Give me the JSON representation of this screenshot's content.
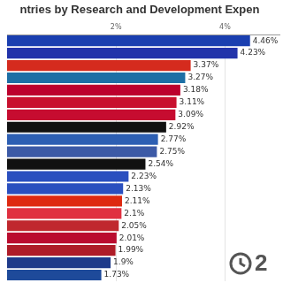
{
  "chart_data": {
    "type": "bar",
    "orientation": "horizontal",
    "title": "ntries by Research and Development Expen",
    "categories": [
      null,
      null,
      null,
      null,
      null,
      null,
      null,
      null,
      null,
      null,
      null,
      null,
      null,
      null,
      null,
      null,
      null,
      null,
      null,
      null
    ],
    "values": [
      4.46,
      4.23,
      3.37,
      3.27,
      3.18,
      3.11,
      3.09,
      2.92,
      2.77,
      2.75,
      2.54,
      2.23,
      2.13,
      2.11,
      2.1,
      2.05,
      2.01,
      1.99,
      1.9,
      1.73
    ],
    "value_labels": [
      "4.46%",
      "4.23%",
      "3.37%",
      "3.27%",
      "3.18%",
      "3.11%",
      "3.09%",
      "2.92%",
      "2.77%",
      "2.75%",
      "2.54%",
      "2.23%",
      "2.13%",
      "2.11%",
      "2.1%",
      "2.05%",
      "2.01%",
      "1.99%",
      "1.9%",
      "1.73%"
    ],
    "colors": [
      "#1a3fb0",
      "#2233aa",
      "#d52b1e",
      "#1d6fa5",
      "#bc002d",
      "#c8102e",
      "#c60c30",
      "#111111",
      "#2d5fb3",
      "#3c5aa6",
      "#111111",
      "#2a4fbf",
      "#2a4fbf",
      "#de2910",
      "#e03040",
      "#c0282e",
      "#ba0c2f",
      "#ae1c28",
      "#1e3a8a",
      "#1e4a9a"
    ],
    "xlim": [
      0,
      5
    ],
    "xticks": [
      {
        "value": 2,
        "label": "2%"
      },
      {
        "value": 4,
        "label": "4%"
      }
    ],
    "grid": true,
    "data_labels": true,
    "tick_labels": "x",
    "annotations": [
      "2"
    ]
  }
}
